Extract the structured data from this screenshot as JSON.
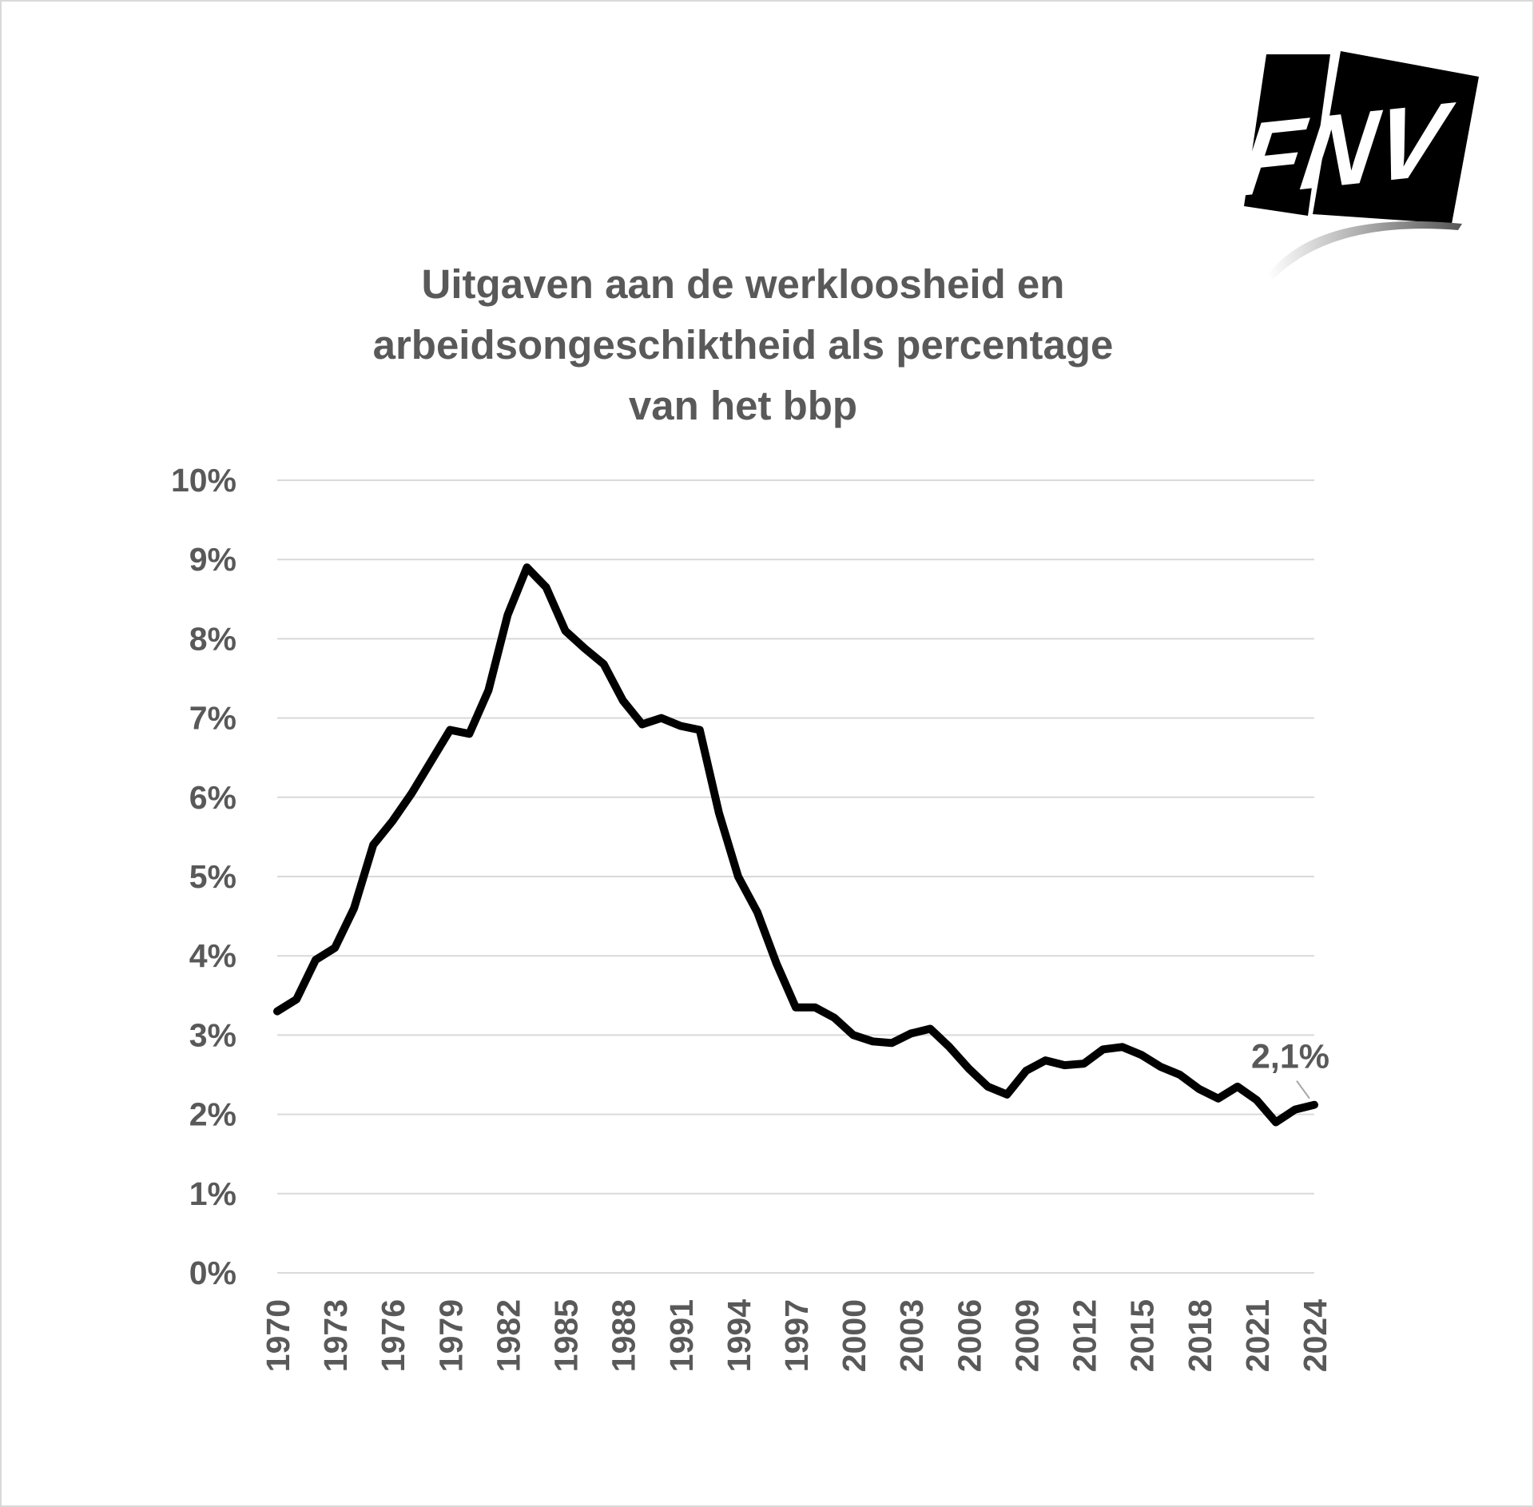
{
  "logo": {
    "text": "FNV"
  },
  "chart_data": {
    "type": "line",
    "title_lines": [
      "Uitgaven aan de werkloosheid en",
      "arbeidsongeschiktheid als percentage",
      "van het bbp"
    ],
    "xlabel": "",
    "ylabel": "",
    "ylim": [
      0,
      10
    ],
    "y_ticks": [
      "0%",
      "1%",
      "2%",
      "3%",
      "4%",
      "5%",
      "6%",
      "7%",
      "8%",
      "9%",
      "10%"
    ],
    "x_ticks": [
      "1970",
      "1973",
      "1976",
      "1979",
      "1982",
      "1985",
      "1988",
      "1991",
      "1994",
      "1997",
      "2000",
      "2003",
      "2006",
      "2009",
      "2012",
      "2015",
      "2018",
      "2021",
      "2024"
    ],
    "grid": true,
    "line_color": "#000000",
    "series": [
      {
        "x": [
          1970,
          1971,
          1972,
          1973,
          1974,
          1975,
          1976,
          1977,
          1978,
          1979,
          1980,
          1981,
          1982,
          1983,
          1984,
          1985,
          1986,
          1987,
          1988,
          1989,
          1990,
          1991,
          1992,
          1993,
          1994,
          1995,
          1996,
          1997,
          1998,
          1999,
          2000,
          2001,
          2002,
          2003,
          2004,
          2005,
          2006,
          2007,
          2008,
          2009,
          2010,
          2011,
          2012,
          2013,
          2014,
          2015,
          2016,
          2017,
          2018,
          2019,
          2020,
          2021,
          2022,
          2023,
          2024
        ],
        "values": [
          3.3,
          3.45,
          3.95,
          4.1,
          4.6,
          5.4,
          5.7,
          6.05,
          6.45,
          6.85,
          6.8,
          7.35,
          8.3,
          8.9,
          8.65,
          8.1,
          7.88,
          7.68,
          7.22,
          6.92,
          7.0,
          6.9,
          6.85,
          5.8,
          5.0,
          4.55,
          3.9,
          3.35,
          3.35,
          3.22,
          3.0,
          2.92,
          2.9,
          3.02,
          3.08,
          2.85,
          2.58,
          2.35,
          2.25,
          2.55,
          2.68,
          2.62,
          2.64,
          2.82,
          2.85,
          2.75,
          2.6,
          2.5,
          2.32,
          2.2,
          2.35,
          2.18,
          1.9,
          2.06,
          2.12
        ]
      }
    ],
    "annotations": [
      {
        "text": "2,1%",
        "x": 2024,
        "y": 2.12
      }
    ]
  }
}
